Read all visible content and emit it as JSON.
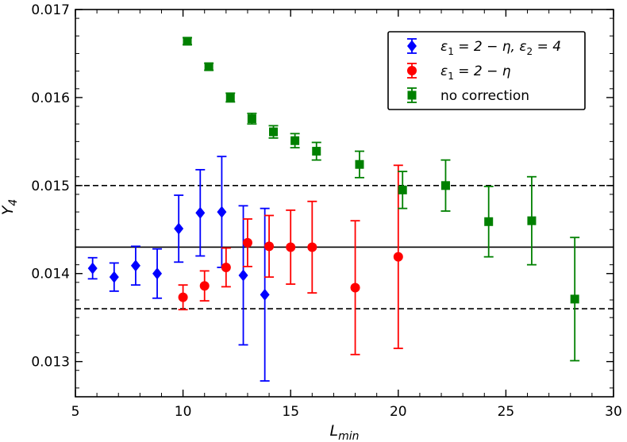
{
  "chart_data": {
    "type": "scatter",
    "title": "",
    "xlabel": "L_min",
    "ylabel": "Y_4",
    "xlabel_main": "L",
    "xlabel_sub": "min",
    "ylabel_main": "Y",
    "ylabel_sub": "4",
    "xlim": [
      5,
      30
    ],
    "ylim": [
      0.0126,
      0.017
    ],
    "xticks": [
      5,
      10,
      15,
      20,
      25,
      30
    ],
    "xtick_labels": [
      "5",
      "10",
      "15",
      "20",
      "25",
      "30"
    ],
    "yticks": [
      0.013,
      0.014,
      0.015,
      0.016,
      0.017
    ],
    "ytick_labels": [
      "0.013",
      "0.014",
      "0.015",
      "0.016",
      "0.017"
    ],
    "grid": false,
    "legend_position": "top-right",
    "reference_lines": [
      {
        "name": "central",
        "y": 0.0143,
        "style": "solid",
        "color": "#000000"
      },
      {
        "name": "upper",
        "y": 0.015,
        "style": "dashed",
        "color": "#000000"
      },
      {
        "name": "lower",
        "y": 0.0136,
        "style": "dashed",
        "color": "#000000"
      }
    ],
    "series": [
      {
        "name": "ε₁ = 2 − η, ε₂ = 4",
        "legend_parts": [
          "ε",
          "1",
          " = 2 − η, ε",
          "2",
          " = 4"
        ],
        "color": "#0000ff",
        "marker": "diamond",
        "x": [
          5.8,
          6.8,
          7.8,
          8.8,
          9.8,
          10.8,
          11.8,
          12.8,
          13.8
        ],
        "y": [
          0.01406,
          0.01396,
          0.01409,
          0.014,
          0.01451,
          0.01469,
          0.0147,
          0.01398,
          0.01376
        ],
        "err": [
          0.00012,
          0.00016,
          0.00022,
          0.00028,
          0.00038,
          0.00049,
          0.00063,
          0.00079,
          0.00098
        ]
      },
      {
        "name": "ε₁ = 2 − η",
        "legend_parts": [
          "ε",
          "1",
          " = 2 − η"
        ],
        "color": "#ff0000",
        "marker": "circle",
        "x": [
          10,
          11,
          12,
          13,
          14,
          15,
          16,
          18,
          20
        ],
        "y": [
          0.01373,
          0.01386,
          0.01407,
          0.01435,
          0.01431,
          0.0143,
          0.0143,
          0.01384,
          0.01419
        ],
        "err": [
          0.00014,
          0.00017,
          0.00022,
          0.00027,
          0.00035,
          0.00042,
          0.00052,
          0.00076,
          0.00104
        ]
      },
      {
        "name": "no correction",
        "legend_parts": [
          "no correction"
        ],
        "color": "#008000",
        "marker": "square",
        "x": [
          10.2,
          11.2,
          12.2,
          13.2,
          14.2,
          15.2,
          16.2,
          18.2,
          20.2,
          22.2,
          24.2,
          26.2,
          28.2
        ],
        "y": [
          0.01664,
          0.01635,
          0.016,
          0.01576,
          0.01561,
          0.01551,
          0.01539,
          0.01524,
          0.01495,
          0.015,
          0.01459,
          0.0146,
          0.01371
        ],
        "err": [
          4e-05,
          4e-05,
          5e-05,
          6e-05,
          7e-05,
          8e-05,
          0.0001,
          0.00015,
          0.00021,
          0.00029,
          0.0004,
          0.0005,
          0.0007
        ]
      }
    ]
  }
}
